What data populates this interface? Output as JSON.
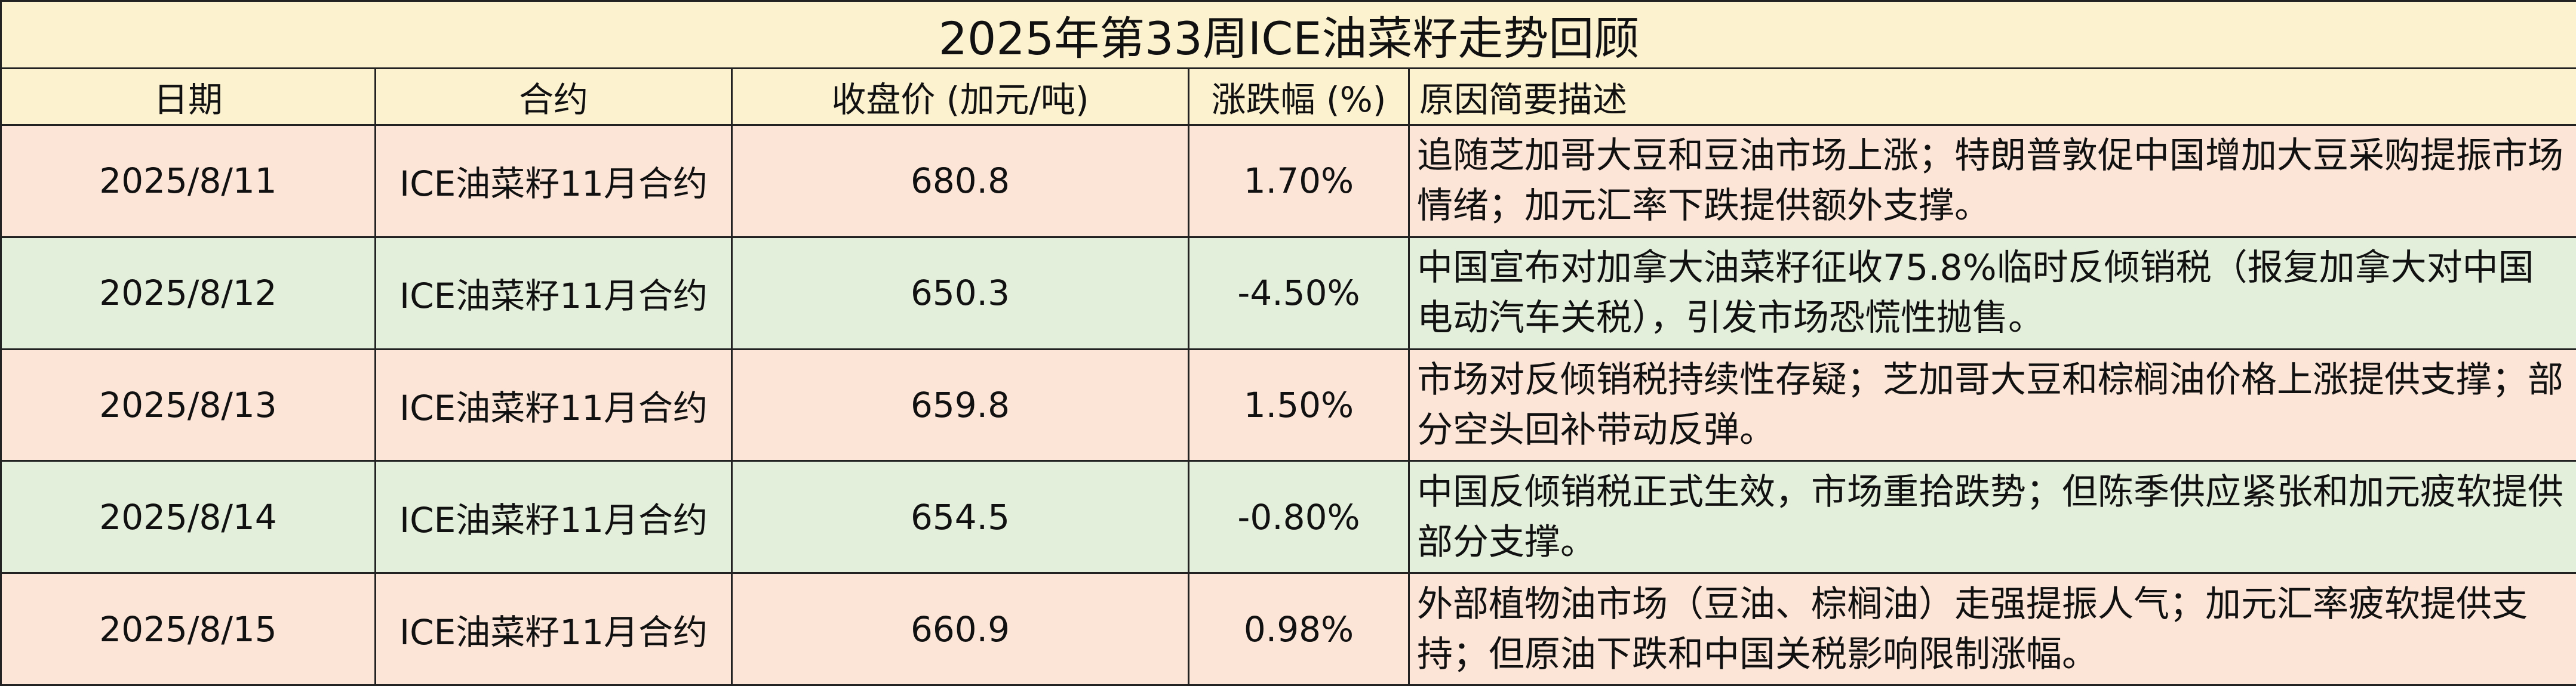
{
  "table": {
    "title": "2025年第33周ICE油菜籽走势回顾",
    "headers": [
      "日期",
      "合约",
      "收盘价 (加元/吨)",
      "涨跌幅 (%)",
      "原因简要描述"
    ],
    "rows": [
      [
        "2025/8/11",
        "ICE油菜籽11月合约",
        "680.8",
        "1.70%",
        "追随芝加哥大豆和豆油市场上涨；特朗普敦促中国增加大豆采购提振市场情绪；加元汇率下跌提供额外支撑。"
      ],
      [
        "2025/8/12",
        "ICE油菜籽11月合约",
        "650.3",
        "-4.50%",
        "中国宣布对加拿大油菜籽征收75.8%临时反倾销税（报复加拿大对中国电动汽车关税），引发市场恐慌性抛售。"
      ],
      [
        "2025/8/13",
        "ICE油菜籽11月合约",
        "659.8",
        "1.50%",
        "市场对反倾销税持续性存疑；芝加哥大豆和棕榈油价格上涨提供支撑；部分空头回补带动反弹。"
      ],
      [
        "2025/8/14",
        "ICE油菜籽11月合约",
        "654.5",
        "-0.80%",
        "中国反倾销税正式生效，市场重拾跌势；但陈季供应紧张和加元疲软提供部分支撑。"
      ],
      [
        "2025/8/15",
        "ICE油菜籽11月合约",
        "660.9",
        "0.98%",
        "外部植物油市场（豆油、棕榈油）走强提振人气；加元汇率疲软提供支持；但原油下跌和中国关税影响限制涨幅。"
      ]
    ]
  }
}
